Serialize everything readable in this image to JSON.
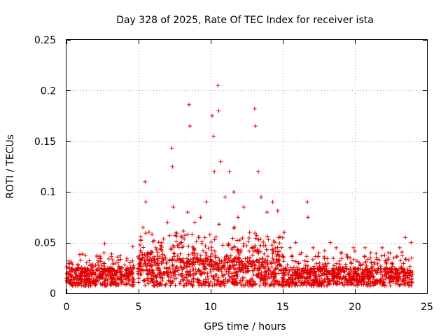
{
  "chart_data": {
    "type": "scatter",
    "title": "Day 328 of 2025, Rate Of TEC Index for receiver ista",
    "xlabel": "GPS time / hours",
    "ylabel": "ROTI / TECUs",
    "xlim": [
      0,
      25
    ],
    "ylim": [
      0,
      0.25
    ],
    "xticks": [
      0,
      5,
      10,
      15,
      20,
      25
    ],
    "yticks": [
      0,
      0.05,
      0.1,
      0.15,
      0.2,
      0.25
    ],
    "xtick_labels": [
      "0",
      "5",
      "10",
      "15",
      "20",
      "25"
    ],
    "ytick_labels": [
      "0",
      "0.05",
      "0.1",
      "0.15",
      "0.2",
      "0.25"
    ],
    "grid": true,
    "marker": "+",
    "color": "#e00000",
    "series": [
      {
        "name": "ROTI",
        "x": [
          0.05,
          0.1,
          0.3,
          0.6,
          1.0,
          1.4,
          1.8,
          2.2,
          2.6,
          2.65,
          3.0,
          3.4,
          3.8,
          4.2,
          4.6,
          5.1,
          5.3,
          5.45,
          5.5,
          5.6,
          5.8,
          6.2,
          6.6,
          7.0,
          7.3,
          7.35,
          7.4,
          7.6,
          8.0,
          8.4,
          8.5,
          8.55,
          8.9,
          9.3,
          9.7,
          10.1,
          10.2,
          10.25,
          10.5,
          10.55,
          10.7,
          11.0,
          11.3,
          11.6,
          11.9,
          12.3,
          12.7,
          13.05,
          13.1,
          13.3,
          13.5,
          13.9,
          14.3,
          14.7,
          15.1,
          15.5,
          15.9,
          16.3,
          16.7,
          16.75,
          17.1,
          17.5,
          17.9,
          18.3,
          18.7,
          19.1,
          19.5,
          19.9,
          20.3,
          20.7,
          21.1,
          21.5,
          21.9,
          22.3,
          22.7,
          23.1,
          23.5,
          23.9
        ],
        "y": [
          0.02,
          0.025,
          0.012,
          0.022,
          0.018,
          0.03,
          0.025,
          0.028,
          0.04,
          0.049,
          0.022,
          0.018,
          0.025,
          0.02,
          0.046,
          0.03,
          0.065,
          0.11,
          0.09,
          0.04,
          0.035,
          0.045,
          0.05,
          0.07,
          0.143,
          0.125,
          0.085,
          0.06,
          0.055,
          0.08,
          0.186,
          0.165,
          0.07,
          0.075,
          0.09,
          0.175,
          0.155,
          0.12,
          0.205,
          0.18,
          0.13,
          0.095,
          0.12,
          0.1,
          0.075,
          0.085,
          0.06,
          0.182,
          0.165,
          0.12,
          0.095,
          0.08,
          0.09,
          0.055,
          0.06,
          0.045,
          0.05,
          0.04,
          0.09,
          0.075,
          0.045,
          0.04,
          0.042,
          0.05,
          0.045,
          0.04,
          0.035,
          0.045,
          0.03,
          0.045,
          0.04,
          0.035,
          0.045,
          0.04,
          0.035,
          0.045,
          0.055,
          0.05
        ]
      }
    ]
  }
}
